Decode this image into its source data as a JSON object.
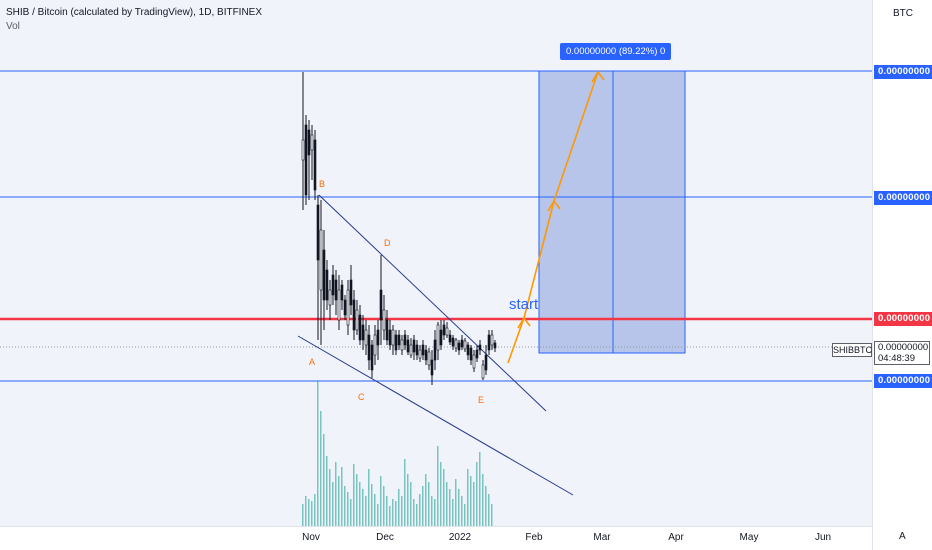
{
  "chart_data": {
    "type": "candlestick",
    "legend": {
      "title": "SHIB / Bitcoin (calculated by TradingView), 1D, BITFINEX",
      "volume_label": "Vol"
    },
    "quote_currency": "BTC",
    "x_ticks": [
      "Nov",
      "Dec",
      "2022",
      "Feb",
      "Mar",
      "Apr",
      "May",
      "Jun"
    ],
    "price_labels": {
      "target": "0.00000000",
      "mid_resistance": "0.00000000",
      "resistance_red": "0.00000000",
      "support": "0.00000000"
    },
    "current_price": {
      "symbol": "SHIBBTC",
      "price": "0.00000000",
      "countdown": "04:48:39"
    },
    "target_label": "0.00000000 (89.22%) 0",
    "wave_labels": [
      "A",
      "B",
      "C",
      "D",
      "E"
    ],
    "annotation": "start",
    "scale_button": "A",
    "colors": {
      "up_candle": "#ffffff",
      "down_candle": "#131722",
      "volume": "#26a69a",
      "horizontal_lines": "#2962ff",
      "red_line": "#f23645",
      "projection_arrow": "#ff9800",
      "wave_labels": "#ff6d00",
      "target_zone": "#a4b6e6",
      "trendlines": "#283a8c"
    }
  }
}
